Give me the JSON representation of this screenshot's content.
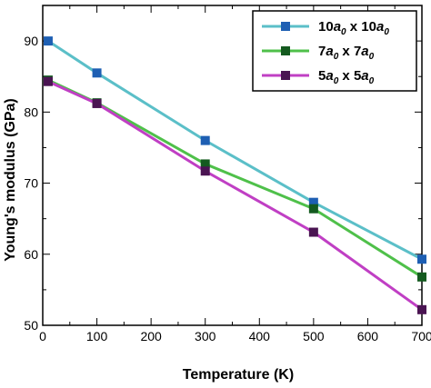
{
  "chart_data": {
    "type": "line",
    "xlabel": "Temperature (K)",
    "ylabel": "Young's modulus (GPa)",
    "xlim": [
      0,
      700
    ],
    "ylim": [
      50,
      95
    ],
    "xticks": [
      0,
      100,
      200,
      300,
      400,
      500,
      600,
      700
    ],
    "yticks": [
      50,
      60,
      70,
      80,
      90
    ],
    "grid": false,
    "legend_position": "top-right",
    "x": [
      10,
      100,
      300,
      500,
      700
    ],
    "series": [
      {
        "name": "10 a0 x 10 a0",
        "legend": {
          "n1": "10",
          "a1": "a",
          "s1": "0",
          "mid": " x ",
          "n2": "10",
          "a2": "a",
          "s2": "0"
        },
        "line_color": "#5bbfc8",
        "marker_color": "#1e5fb3",
        "values": [
          90.0,
          85.5,
          76.0,
          67.3,
          59.3
        ]
      },
      {
        "name": "7 a0 x 7 a0",
        "legend": {
          "n1": "7",
          "a1": "a",
          "s1": "0",
          "mid": " x ",
          "n2": "7",
          "a2": "a",
          "s2": "0"
        },
        "line_color": "#4fc04a",
        "marker_color": "#145a1f",
        "values": [
          84.5,
          81.3,
          72.7,
          66.4,
          56.8
        ]
      },
      {
        "name": "5 a0 x 5 a0",
        "legend": {
          "n1": "5",
          "a1": "a",
          "s1": "0",
          "mid": " x ",
          "n2": "5",
          "a2": "a",
          "s2": "0"
        },
        "line_color": "#c03fc4",
        "marker_color": "#4a1452",
        "values": [
          84.3,
          81.2,
          71.7,
          63.1,
          52.2
        ]
      }
    ]
  }
}
